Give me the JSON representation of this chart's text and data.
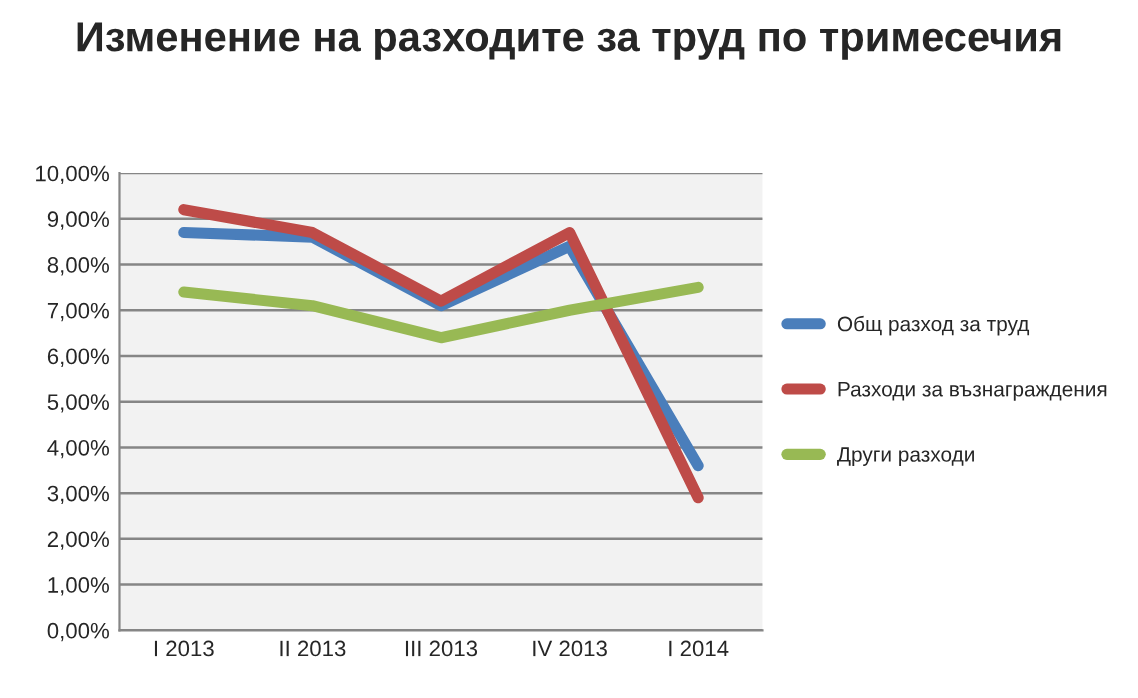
{
  "chart_data": {
    "type": "line",
    "title": "Изменение на разходите за труд по тримесечия",
    "categories": [
      "I 2013",
      "II 2013",
      "III 2013",
      "IV 2013",
      "I 2014"
    ],
    "series": [
      {
        "name": "Общ разход за труд",
        "color": "#4a7ebb",
        "values": [
          8.7,
          8.6,
          7.1,
          8.4,
          3.6
        ]
      },
      {
        "name": "Разходи за възнаграждения",
        "color": "#be4b48",
        "values": [
          9.2,
          8.7,
          7.2,
          8.7,
          2.9
        ]
      },
      {
        "name": "Други разходи",
        "color": "#98b954",
        "values": [
          7.4,
          7.1,
          6.4,
          7.0,
          7.5
        ]
      }
    ],
    "ylim": [
      0,
      10
    ],
    "yticks": [
      {
        "value": 0,
        "label": "0,00%"
      },
      {
        "value": 1,
        "label": "1,00%"
      },
      {
        "value": 2,
        "label": "2,00%"
      },
      {
        "value": 3,
        "label": "3,00%"
      },
      {
        "value": 4,
        "label": "4,00%"
      },
      {
        "value": 5,
        "label": "5,00%"
      },
      {
        "value": 6,
        "label": "6,00%"
      },
      {
        "value": 7,
        "label": "7,00%"
      },
      {
        "value": 8,
        "label": "8,00%"
      },
      {
        "value": 9,
        "label": "9,00%"
      },
      {
        "value": 10,
        "label": "10,00%"
      }
    ],
    "grid": "y",
    "legend": "right",
    "marker": "none",
    "line_style": "solid"
  }
}
